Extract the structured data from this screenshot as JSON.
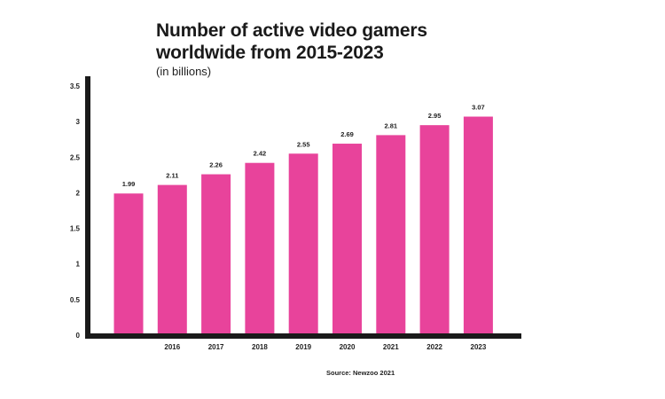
{
  "chart_data": {
    "type": "bar",
    "title_line1": "Number of active video gamers",
    "title_line2": "worldwide from 2015-2023",
    "subtitle": "(in billions)",
    "source": "Source: Newzoo 2021",
    "categories": [
      "",
      "2016",
      "2017",
      "2018",
      "2019",
      "2020",
      "2021",
      "2022",
      "2023"
    ],
    "values": [
      1.99,
      2.11,
      2.26,
      2.42,
      2.55,
      2.69,
      2.81,
      2.95,
      3.07
    ],
    "value_labels": [
      "1.99",
      "2.11",
      "2.26",
      "2.42",
      "2.55",
      "2.69",
      "2.81",
      "2.95",
      "3.07"
    ],
    "yticks": [
      "0",
      "0.5",
      "1",
      "1.5",
      "2",
      "2.5",
      "3",
      "3.5"
    ],
    "ylim": [
      0,
      3.5
    ],
    "grid": false,
    "xlabel": "",
    "ylabel": "",
    "colors": {
      "bar": "#e8439b",
      "axis": "#1a1a1a"
    }
  }
}
